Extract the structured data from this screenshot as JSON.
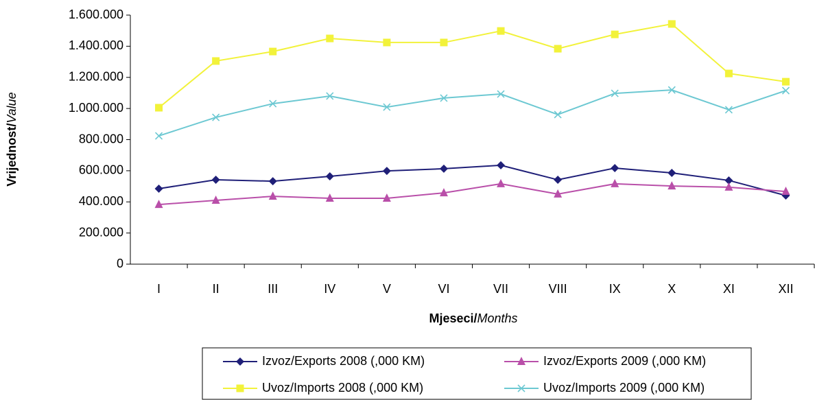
{
  "chart_data": {
    "type": "line",
    "x_label": {
      "bold": "Mjeseci/",
      "italic": "Months"
    },
    "y_label": {
      "bold": "Vrijednost/",
      "italic": "Value"
    },
    "categories": [
      "I",
      "II",
      "III",
      "IV",
      "V",
      "VI",
      "VII",
      "VIII",
      "IX",
      "X",
      "XI",
      "XII"
    ],
    "series": [
      {
        "name": "Izvoz/Exports 2008 (,000 KM)",
        "color": "#1f1f78",
        "marker": "diamond",
        "values": [
          485000,
          542000,
          533000,
          564000,
          599000,
          613000,
          635000,
          542000,
          617000,
          586000,
          538000,
          441000
        ]
      },
      {
        "name": "Izvoz/Exports 2009 (,000 KM)",
        "color": "#b94fa9",
        "marker": "triangle",
        "values": [
          383000,
          410000,
          436000,
          423000,
          423000,
          458000,
          516000,
          450000,
          516000,
          502000,
          494000,
          467000
        ]
      },
      {
        "name": "Uvoz/Imports 2008 (,000 KM)",
        "color": "#f2f23a",
        "marker": "square",
        "values": [
          1005000,
          1305000,
          1366000,
          1450000,
          1424000,
          1424000,
          1498000,
          1384000,
          1476000,
          1543000,
          1225000,
          1172000
        ]
      },
      {
        "name": "Uvoz/Imports 2009 (,000 KM)",
        "color": "#6cc8d2",
        "marker": "x",
        "values": [
          824000,
          943000,
          1031000,
          1080000,
          1009000,
          1067000,
          1093000,
          961000,
          1097000,
          1119000,
          992000,
          1115000
        ]
      }
    ],
    "ylim": [
      0,
      1600000
    ],
    "yticks": [
      0,
      {
        "value": 200000,
        "label": "200.000"
      },
      {
        "value": 400000,
        "label": "400.000"
      },
      {
        "value": 600000,
        "label": "600.000"
      },
      {
        "value": 800000,
        "label": "800.000"
      },
      {
        "value": 1000000,
        "label": "1.000.000"
      },
      {
        "value": 1200000,
        "label": "1.200.000"
      },
      {
        "value": 1400000,
        "label": "1.400.000"
      },
      {
        "value": 1600000,
        "label": "1.600.000"
      }
    ],
    "grid": false,
    "legend": "bottom"
  }
}
